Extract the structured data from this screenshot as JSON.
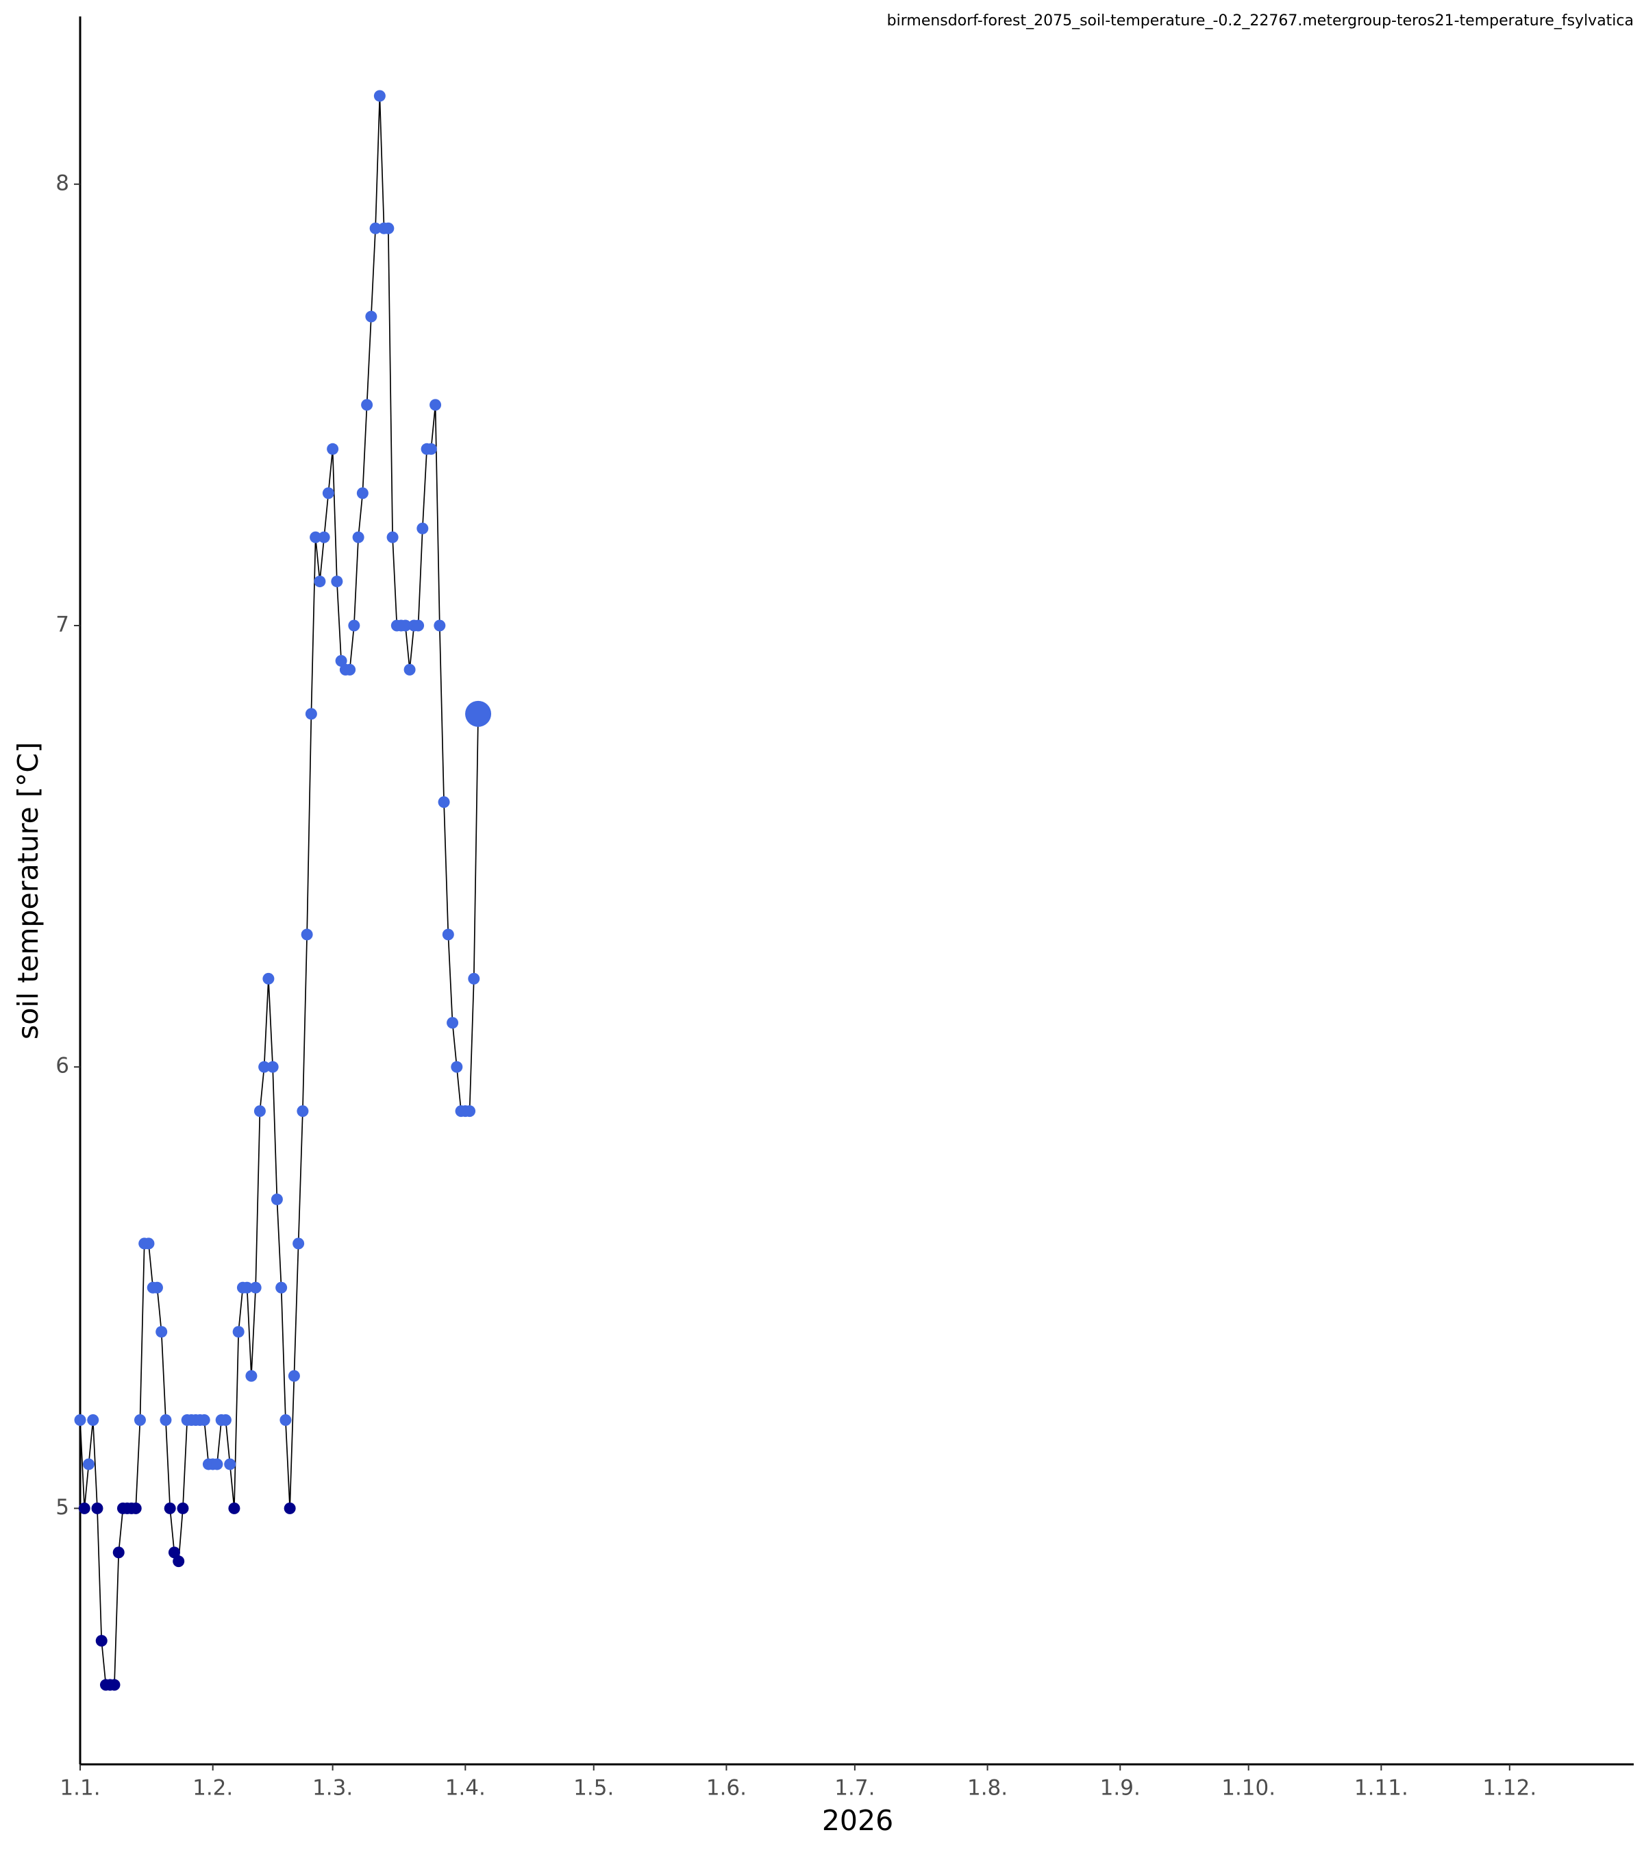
{
  "chart_data": {
    "type": "line",
    "title": "birmensdorf-forest_2075_soil-temperature_-0.2_22767.metergroup-teros21-temperature_fsylvatica",
    "x_label": "2026",
    "y_label": "soil temperature [°C]",
    "x": [
      0,
      1,
      2,
      3,
      4,
      5,
      6,
      7,
      8,
      9,
      10,
      11,
      12,
      13,
      14,
      15,
      16,
      17,
      18,
      19,
      20,
      21,
      22,
      23,
      24,
      25,
      26,
      27,
      28,
      29,
      30,
      31,
      32,
      33,
      34,
      35,
      36,
      37,
      38,
      39,
      40,
      41,
      42,
      43,
      44,
      45,
      46,
      47,
      48,
      49,
      50,
      51,
      52,
      53,
      54,
      55,
      56,
      57,
      58,
      59,
      60,
      61,
      62,
      63,
      64,
      65,
      66,
      67,
      68,
      69,
      70,
      71,
      72,
      73,
      74,
      75,
      76,
      77,
      78,
      79,
      80,
      81,
      82,
      83,
      84,
      85,
      86,
      87,
      88,
      89,
      90,
      91,
      92,
      93
    ],
    "series": [
      {
        "name": "soil temperature",
        "color": "#4169e1",
        "low_color": "#00008b",
        "color_threshold": 5,
        "line_color": "#000000",
        "values": [
          5.2,
          5.0,
          5.1,
          5.2,
          5.0,
          4.7,
          4.6,
          4.6,
          4.6,
          4.9,
          5.0,
          5.0,
          5.0,
          5.0,
          5.2,
          5.6,
          5.6,
          5.5,
          5.5,
          5.4,
          5.2,
          5.0,
          4.9,
          4.88,
          5.0,
          5.2,
          5.2,
          5.2,
          5.2,
          5.2,
          5.1,
          5.1,
          5.1,
          5.2,
          5.2,
          5.1,
          5.0,
          5.4,
          5.5,
          5.5,
          5.3,
          5.5,
          5.9,
          6.0,
          6.2,
          6.0,
          5.7,
          5.5,
          5.2,
          5.0,
          5.3,
          5.6,
          5.9,
          6.3,
          6.8,
          7.2,
          7.1,
          7.2,
          7.3,
          7.4,
          7.1,
          6.92,
          6.9,
          6.9,
          7.0,
          7.2,
          7.3,
          7.5,
          7.7,
          7.9,
          8.2,
          7.9,
          7.9,
          7.2,
          7.0,
          7.0,
          7.0,
          6.9,
          7.0,
          7.0,
          7.22,
          7.4,
          7.4,
          7.5,
          7.0,
          6.6,
          6.3,
          6.1,
          6.0,
          5.9,
          5.9,
          5.9,
          6.2,
          6.8
        ]
      }
    ],
    "highlight_last": true,
    "xlim": [
      0,
      363
    ],
    "ylim": [
      4.42,
      8.38
    ],
    "xticks": [
      {
        "value": 0,
        "label": "1.1."
      },
      {
        "value": 31,
        "label": "1.2."
      },
      {
        "value": 59,
        "label": "1.3."
      },
      {
        "value": 90,
        "label": "1.4."
      },
      {
        "value": 120,
        "label": "1.5."
      },
      {
        "value": 151,
        "label": "1.6."
      },
      {
        "value": 181,
        "label": "1.7."
      },
      {
        "value": 212,
        "label": "1.8."
      },
      {
        "value": 243,
        "label": "1.9."
      },
      {
        "value": 273,
        "label": "1.10."
      },
      {
        "value": 304,
        "label": "1.11."
      },
      {
        "value": 334,
        "label": "1.12."
      }
    ],
    "yticks": [
      5,
      6,
      7,
      8
    ],
    "grid": false
  }
}
